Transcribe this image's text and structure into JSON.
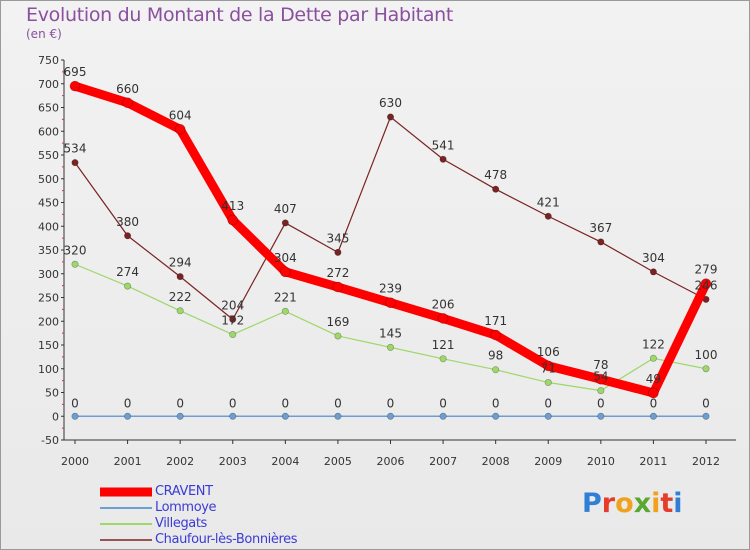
{
  "title": "Evolution du Montant de la Dette par Habitant",
  "subtitle": "(en €)",
  "logo": {
    "text": "Proxiti",
    "letter_colors": [
      "#2f7fd6",
      "#e63c2b",
      "#f2a11d",
      "#5aa832",
      "#f2a11d",
      "#e63c2b",
      "#2f7fd6"
    ]
  },
  "chart_data": {
    "type": "line",
    "x": [
      "2000",
      "2001",
      "2002",
      "2003",
      "2004",
      "2005",
      "2006",
      "2007",
      "2008",
      "2009",
      "2010",
      "2011",
      "2012"
    ],
    "ylim": [
      -50,
      750
    ],
    "yticks": [
      "-50",
      "0",
      "50",
      "100",
      "150",
      "200",
      "250",
      "300",
      "350",
      "400",
      "450",
      "500",
      "550",
      "600",
      "650",
      "700",
      "750"
    ],
    "grid": false,
    "legend_position": "bottom-left",
    "series": [
      {
        "name": "CRAVENT",
        "color": "#ff0000",
        "values": [
          695,
          660,
          604,
          413,
          304,
          272,
          239,
          206,
          171,
          106,
          78,
          49,
          279
        ],
        "labels": [
          "695",
          "660",
          "604",
          "413",
          "304",
          "272",
          "239",
          "206",
          "171",
          "106",
          "78",
          "49",
          "279"
        ]
      },
      {
        "name": "Lommoye",
        "color": "#6d9ed2",
        "values": [
          0,
          0,
          0,
          0,
          0,
          0,
          0,
          0,
          0,
          0,
          0,
          0,
          0
        ],
        "labels": [
          "0",
          "0",
          "0",
          "0",
          "0",
          "0",
          "0",
          "0",
          "0",
          "0",
          "0",
          "0",
          "0"
        ]
      },
      {
        "name": "Villegats",
        "color": "#9ed76a",
        "values": [
          320,
          274,
          222,
          172,
          221,
          169,
          145,
          121,
          98,
          71,
          54,
          122,
          100
        ],
        "labels": [
          "320",
          "274",
          "222",
          "172",
          "221",
          "169",
          "145",
          "121",
          "98",
          "71",
          "54",
          "122",
          "100"
        ]
      },
      {
        "name": "Chaufour-lès-Bonnières",
        "color": "#7a2323",
        "values": [
          534,
          380,
          294,
          204,
          407,
          345,
          630,
          541,
          478,
          421,
          367,
          304,
          246
        ],
        "labels": [
          "534",
          "380",
          "294",
          "204",
          "407",
          "345",
          "630",
          "541",
          "478",
          "421",
          "367",
          "304",
          "246"
        ]
      }
    ]
  }
}
